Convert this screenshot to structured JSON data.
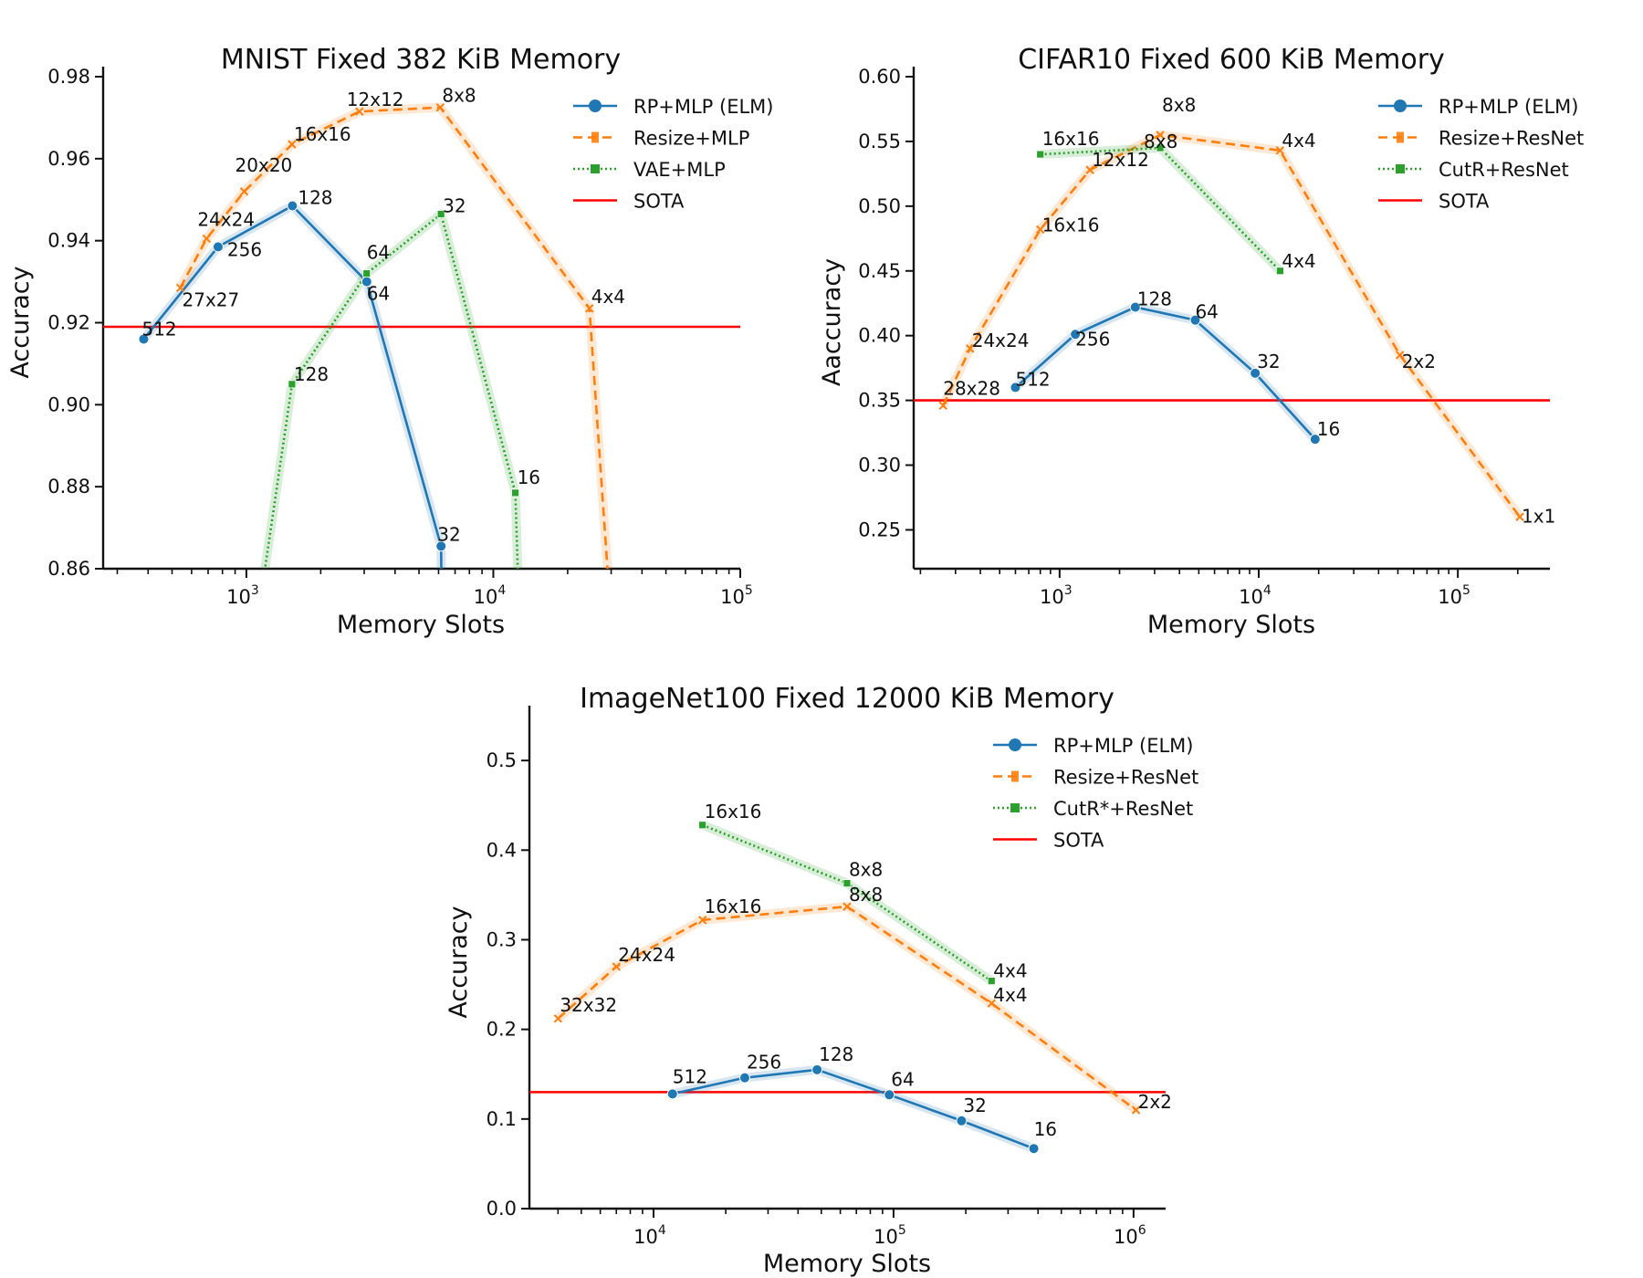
{
  "chart_data": [
    {
      "type": "line",
      "title": "MNIST Fixed 382 KiB Memory",
      "xlabel": "Memory Slots",
      "ylabel": "Accuracy",
      "xscale": "log",
      "xlim": [
        263,
        100000
      ],
      "ylim": [
        0.86,
        0.98
      ],
      "xticks": [
        {
          "v": 1000,
          "b": "10",
          "e": "3"
        },
        {
          "v": 10000,
          "b": "10",
          "e": "4"
        },
        {
          "v": 100000,
          "b": "10",
          "e": "5"
        }
      ],
      "yticks": [
        "0.86",
        "0.88",
        "0.90",
        "0.92",
        "0.94",
        "0.96",
        "0.98"
      ],
      "legend_position": "top-right",
      "series": [
        {
          "name": "RP+MLP (ELM)",
          "style": "elm",
          "color": "#1f77b4",
          "points": [
            {
              "x": 384,
              "y": 0.916,
              "label": "512"
            },
            {
              "x": 768,
              "y": 0.9385,
              "label": "256"
            },
            {
              "x": 1536,
              "y": 0.9485,
              "label": "128"
            },
            {
              "x": 3072,
              "y": 0.93,
              "label": "64"
            },
            {
              "x": 6144,
              "y": 0.8655,
              "label": "32"
            },
            {
              "x": 6300,
              "y": 0.8,
              "label": ""
            }
          ]
        },
        {
          "name": "Resize+MLP",
          "style": "resize",
          "color": "#ff7f0e",
          "points": [
            {
              "x": 540,
              "y": 0.9285,
              "label": "27x27"
            },
            {
              "x": 690,
              "y": 0.9405,
              "label": "24x24"
            },
            {
              "x": 980,
              "y": 0.952,
              "label": "20x20"
            },
            {
              "x": 1530,
              "y": 0.9635,
              "label": "16x16"
            },
            {
              "x": 2870,
              "y": 0.9715,
              "label": "12x12"
            },
            {
              "x": 6100,
              "y": 0.9725,
              "label": "8x8"
            },
            {
              "x": 24500,
              "y": 0.9235,
              "label": "4x4"
            },
            {
              "x": 34000,
              "y": 0.8,
              "label": ""
            }
          ]
        },
        {
          "name": "VAE+MLP",
          "style": "vae",
          "color": "#2ca02c",
          "points": [
            {
              "x": 850,
              "y": 0.8,
              "label": ""
            },
            {
              "x": 1530,
              "y": 0.905,
              "label": "128"
            },
            {
              "x": 3070,
              "y": 0.932,
              "label": "64"
            },
            {
              "x": 6140,
              "y": 0.9465,
              "label": "32"
            },
            {
              "x": 12280,
              "y": 0.8785,
              "label": "16"
            },
            {
              "x": 13500,
              "y": 0.8,
              "label": ""
            }
          ]
        }
      ],
      "sota": {
        "name": "SOTA",
        "y": 0.919,
        "color": "#ff0000"
      }
    },
    {
      "type": "line",
      "title": "CIFAR10 Fixed 600 KiB Memory",
      "xlabel": "Memory Slots",
      "ylabel": "Aaccuracy",
      "xscale": "log",
      "xlim": [
        185,
        290000
      ],
      "ylim": [
        0.22,
        0.6
      ],
      "xticks": [
        {
          "v": 1000,
          "b": "10",
          "e": "3"
        },
        {
          "v": 10000,
          "b": "10",
          "e": "4"
        },
        {
          "v": 100000,
          "b": "10",
          "e": "5"
        }
      ],
      "yticks": [
        "0.25",
        "0.30",
        "0.35",
        "0.40",
        "0.45",
        "0.50",
        "0.55",
        "0.60"
      ],
      "legend_position": "top-right",
      "series": [
        {
          "name": "RP+MLP (ELM)",
          "style": "elm",
          "color": "#1f77b4",
          "points": [
            {
              "x": 600,
              "y": 0.36,
              "label": "512"
            },
            {
              "x": 1200,
              "y": 0.401,
              "label": "256"
            },
            {
              "x": 2400,
              "y": 0.422,
              "label": "128"
            },
            {
              "x": 4800,
              "y": 0.412,
              "label": "64"
            },
            {
              "x": 9600,
              "y": 0.371,
              "label": "32"
            },
            {
              "x": 19200,
              "y": 0.32,
              "label": "16"
            }
          ]
        },
        {
          "name": "Resize+ResNet",
          "style": "resize",
          "color": "#ff7f0e",
          "points": [
            {
              "x": 260,
              "y": 0.346,
              "label": "28x28"
            },
            {
              "x": 355,
              "y": 0.39,
              "label": "24x24"
            },
            {
              "x": 800,
              "y": 0.482,
              "label": "16x16"
            },
            {
              "x": 1420,
              "y": 0.528,
              "label": "12x12"
            },
            {
              "x": 3200,
              "y": 0.555,
              "label": "8x8"
            },
            {
              "x": 12800,
              "y": 0.543,
              "label": "4x4"
            },
            {
              "x": 51200,
              "y": 0.385,
              "label": "2x2"
            },
            {
              "x": 204800,
              "y": 0.26,
              "label": "1x1"
            }
          ]
        },
        {
          "name": "CutR+ResNet",
          "style": "vae",
          "color": "#2ca02c",
          "points": [
            {
              "x": 800,
              "y": 0.54,
              "label": "16x16"
            },
            {
              "x": 3200,
              "y": 0.545,
              "label": "8x8"
            },
            {
              "x": 12800,
              "y": 0.45,
              "label": "4x4"
            }
          ]
        }
      ],
      "sota": {
        "name": "SOTA",
        "y": 0.35,
        "color": "#ff0000"
      }
    },
    {
      "type": "line",
      "title": "ImageNet100 Fixed 12000 KiB Memory",
      "xlabel": "Memory Slots",
      "ylabel": "Accuracy",
      "xscale": "log",
      "xlim": [
        3040,
        1360000
      ],
      "ylim": [
        0.0,
        0.55
      ],
      "xticks": [
        {
          "v": 10000,
          "b": "10",
          "e": "4"
        },
        {
          "v": 100000,
          "b": "10",
          "e": "5"
        },
        {
          "v": 1000000,
          "b": "10",
          "e": "6"
        }
      ],
      "yticks": [
        "0.0",
        "0.1",
        "0.2",
        "0.3",
        "0.4",
        "0.5"
      ],
      "legend_position": "top-right",
      "series": [
        {
          "name": "RP+MLP (ELM)",
          "style": "elm",
          "color": "#1f77b4",
          "points": [
            {
              "x": 12000,
              "y": 0.128,
              "label": "512"
            },
            {
              "x": 24000,
              "y": 0.146,
              "label": "256"
            },
            {
              "x": 48000,
              "y": 0.155,
              "label": "128"
            },
            {
              "x": 96000,
              "y": 0.127,
              "label": "64"
            },
            {
              "x": 192000,
              "y": 0.098,
              "label": "32"
            },
            {
              "x": 384000,
              "y": 0.067,
              "label": "16"
            }
          ]
        },
        {
          "name": "Resize+ResNet",
          "style": "resize",
          "color": "#ff7f0e",
          "points": [
            {
              "x": 4000,
              "y": 0.212,
              "label": "32x32"
            },
            {
              "x": 7000,
              "y": 0.27,
              "label": "24x24"
            },
            {
              "x": 16000,
              "y": 0.322,
              "label": "16x16"
            },
            {
              "x": 64000,
              "y": 0.337,
              "label": "8x8"
            },
            {
              "x": 256000,
              "y": 0.229,
              "label": "4x4"
            },
            {
              "x": 1024000,
              "y": 0.11,
              "label": "2x2"
            }
          ]
        },
        {
          "name": "CutR*+ResNet",
          "style": "vae",
          "color": "#2ca02c",
          "points": [
            {
              "x": 16000,
              "y": 0.428,
              "label": "16x16"
            },
            {
              "x": 64000,
              "y": 0.363,
              "label": "8x8"
            },
            {
              "x": 256000,
              "y": 0.254,
              "label": "4x4"
            }
          ]
        }
      ],
      "sota": {
        "name": "SOTA",
        "y": 0.13,
        "color": "#ff0000"
      }
    }
  ]
}
